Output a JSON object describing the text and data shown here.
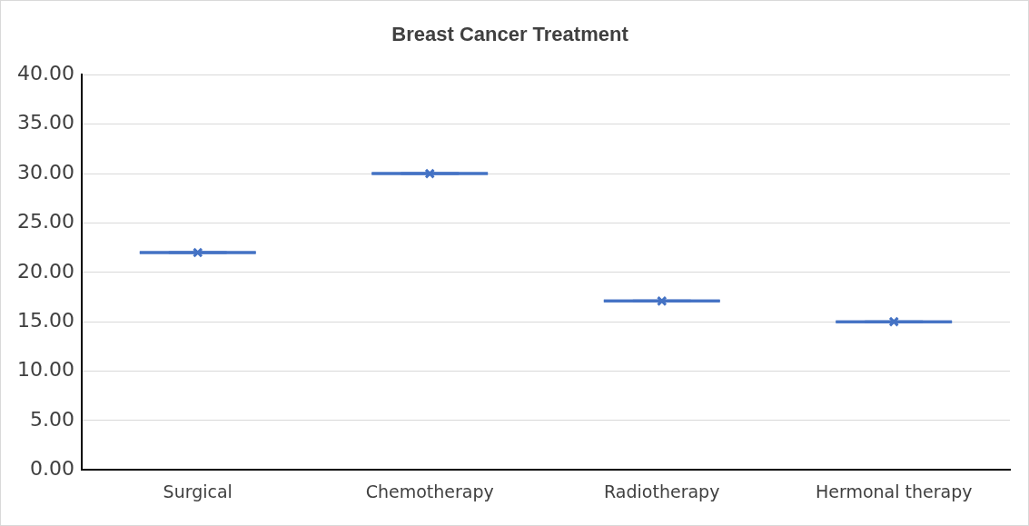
{
  "chart_data": {
    "type": "box",
    "title": "Breast Cancer Treatment",
    "categories": [
      "Surgical",
      "Chemotherapy",
      "Radiotherapy",
      "Hermonal therapy"
    ],
    "color": "#4472c4",
    "boxes": [
      {
        "low": 22,
        "q1": 22,
        "median": 22,
        "q3": 22,
        "high": 22,
        "mean": 22
      },
      {
        "low": 30,
        "q1": 30,
        "median": 30,
        "q3": 30,
        "high": 30,
        "mean": 30
      },
      {
        "low": 17.1,
        "q1": 17.1,
        "median": 17.1,
        "q3": 17.1,
        "high": 17.1,
        "mean": 17.1
      },
      {
        "low": 15,
        "q1": 15,
        "median": 15,
        "q3": 15,
        "high": 15,
        "mean": 15
      }
    ],
    "ylim": [
      0,
      40
    ],
    "yticks": [
      {
        "value": 0,
        "label": "0.00"
      },
      {
        "value": 5,
        "label": "5.00"
      },
      {
        "value": 10,
        "label": "10.00"
      },
      {
        "value": 15,
        "label": "15.00"
      },
      {
        "value": 20,
        "label": "20.00"
      },
      {
        "value": 25,
        "label": "25.00"
      },
      {
        "value": 30,
        "label": "30.00"
      },
      {
        "value": 35,
        "label": "35.00"
      },
      {
        "value": 40,
        "label": "40.00"
      }
    ],
    "grid": "y",
    "marker": "cross",
    "legend": false
  }
}
